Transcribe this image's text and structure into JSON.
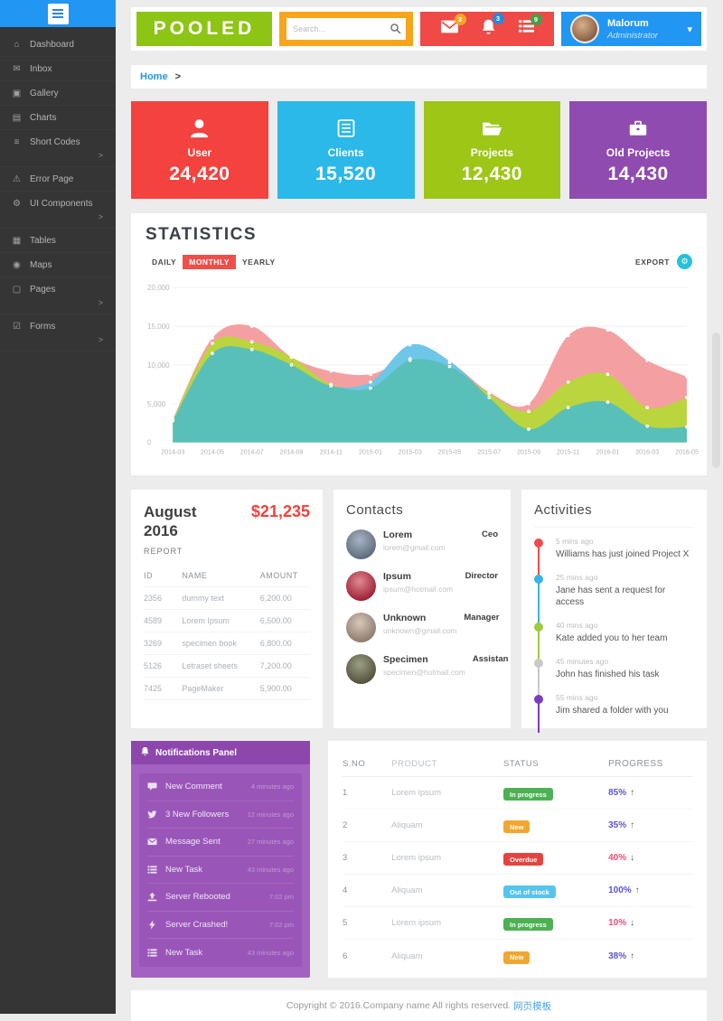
{
  "topbar": {
    "logo": "POOLED",
    "search_placeholder": "Search...",
    "alerts": {
      "mail_count": "3",
      "bell_count": "3",
      "tasks_count": "9"
    },
    "alert_badge_colors": {
      "mail": "#f5a623",
      "bell": "#2b87d8",
      "tasks": "#43a047"
    },
    "user": {
      "name": "Malorum",
      "role": "Administrator",
      "caret": "▾"
    }
  },
  "sidebar": {
    "items": [
      {
        "icon": "dashboard-icon",
        "glyph": "⌂",
        "label": "Dashboard"
      },
      {
        "icon": "inbox-icon",
        "glyph": "✉",
        "label": "Inbox"
      },
      {
        "icon": "gallery-icon",
        "glyph": "▣",
        "label": "Gallery"
      },
      {
        "icon": "charts-icon",
        "glyph": "▤",
        "label": "Charts"
      },
      {
        "icon": "shortcodes-icon",
        "glyph": "≡",
        "label": "Short Codes",
        "chevron": ">"
      },
      {
        "icon": "error-page-icon",
        "glyph": "⚠",
        "label": "Error Page"
      },
      {
        "icon": "ui-components-icon",
        "glyph": "⚙",
        "label": "UI Components",
        "chevron": ">"
      },
      {
        "icon": "tables-icon",
        "glyph": "▦",
        "label": "Tables"
      },
      {
        "icon": "maps-icon",
        "glyph": "◉",
        "label": "Maps"
      },
      {
        "icon": "pages-icon",
        "glyph": "▢",
        "label": "Pages",
        "chevron": ">"
      },
      {
        "icon": "forms-icon",
        "glyph": "☑",
        "label": "Forms",
        "chevron": ">"
      }
    ]
  },
  "breadcrumb": {
    "home": "Home",
    "separator": ">"
  },
  "cards": [
    {
      "icon": "user-icon",
      "label": "User",
      "value": "24,420",
      "color": "#f4423e"
    },
    {
      "icon": "clients-icon",
      "label": "Clients",
      "value": "15,520",
      "color": "#2ab9e8"
    },
    {
      "icon": "projects-icon",
      "label": "Projects",
      "value": "12,430",
      "color": "#9dc616"
    },
    {
      "icon": "old-projects-icon",
      "label": "Old Projects",
      "value": "14,430",
      "color": "#8f4baf"
    }
  ],
  "statistics": {
    "title": "STATISTICS",
    "tabs": [
      "DAILY",
      "MONTHLY",
      "YEARLY"
    ],
    "active_tab": "MONTHLY",
    "export_label": "EXPORT",
    "gear_glyph": "⚙",
    "chart_data": {
      "type": "area",
      "x": [
        "2014-03",
        "2014-05",
        "2014-07",
        "2014-09",
        "2014-11",
        "2015-01",
        "2015-03",
        "2015-05",
        "2015-07",
        "2015-09",
        "2015-11",
        "2016-01",
        "2016-03",
        "2016-05"
      ],
      "series": [
        {
          "name": "series-pink",
          "color": "#f5a0a0",
          "values": [
            3000,
            13500,
            15000,
            11000,
            9200,
            8800,
            10800,
            10300,
            6500,
            5000,
            13800,
            14500,
            10600,
            8500
          ]
        },
        {
          "name": "series-green",
          "color": "#bad53e",
          "values": [
            2900,
            12800,
            13000,
            11000,
            7500,
            7000,
            10600,
            9800,
            6300,
            4000,
            7800,
            8800,
            4500,
            5800
          ]
        },
        {
          "name": "series-blue",
          "color": "#6ec6e9",
          "overlap_color": "#58c0b8",
          "values": [
            2800,
            11500,
            12000,
            10000,
            7300,
            7800,
            12600,
            10500,
            5800,
            1700,
            4500,
            5200,
            2100,
            2000
          ]
        }
      ],
      "ylim": [
        0,
        20000
      ],
      "yticks": {
        "values": [
          0,
          5000,
          10000,
          15000,
          20000
        ],
        "labels": [
          "0",
          "5,000",
          "10,000",
          "15,000",
          "20,000"
        ]
      },
      "grid": true,
      "legend": "none"
    }
  },
  "report": {
    "month_line1": "August",
    "month_line2": "2016",
    "total": "$21,235",
    "label": "REPORT",
    "columns": [
      "ID",
      "NAME",
      "AMOUNT"
    ],
    "rows": [
      {
        "id": "2356",
        "name": "dummy text",
        "amount": "6,200.00"
      },
      {
        "id": "4589",
        "name": "Lorem Ipsum",
        "amount": "6,500.00"
      },
      {
        "id": "3269",
        "name": "specimen book",
        "amount": "6,800.00"
      },
      {
        "id": "5126",
        "name": "Letraset sheets",
        "amount": "7,200.00"
      },
      {
        "id": "7425",
        "name": "PageMaker",
        "amount": "5,900.00"
      }
    ]
  },
  "contacts": {
    "title": "Contacts",
    "items": [
      {
        "name": "Lorem",
        "email": "lorem@gmail.com",
        "role": "Ceo",
        "avatar": "radial-gradient(circle at 45% 35%, #a9b4c2, #5c6b7d 75%)"
      },
      {
        "name": "Ipsum",
        "email": "ipsum@hotmail.com",
        "role": "Director",
        "avatar": "radial-gradient(circle at 45% 35%, #e08a93, #9e1f33 75%)"
      },
      {
        "name": "Unknown",
        "email": "unknown@gmail.com",
        "role": "Manager",
        "avatar": "radial-gradient(circle at 45% 35%, #d8c8ba, #8d7b6e 75%)"
      },
      {
        "name": "Specimen",
        "email": "specimen@hotmail.com",
        "role": "Assistan",
        "avatar": "radial-gradient(circle at 45% 35%, #9aa083, #55503e 75%)"
      }
    ]
  },
  "activities": {
    "title": "Activities",
    "items": [
      {
        "time": "5 mins ago",
        "text": "Williams has just joined Project X",
        "color": "#ef4b4b"
      },
      {
        "time": "25 mins ago",
        "text": "Jane has sent a request for access",
        "color": "#36b4e5"
      },
      {
        "time": "40 mins ago",
        "text": "Kate added you to her team",
        "color": "#9ccb3b"
      },
      {
        "time": "45 minutes ago",
        "text": "John has finished his task",
        "color": "#c9c9c9"
      },
      {
        "time": "55 mins ago",
        "text": "Jim shared a folder with you",
        "color": "#7d3bbf"
      }
    ]
  },
  "notifications": {
    "title": "Notifications Panel",
    "items": [
      {
        "icon": "comment-icon",
        "label": "New Comment",
        "time": "4 minutes ago"
      },
      {
        "icon": "twitter-icon",
        "label": "3 New Followers",
        "time": "12 minutes ago"
      },
      {
        "icon": "mail-icon",
        "label": "Message Sent",
        "time": "27 minutes ago"
      },
      {
        "icon": "tasks-icon",
        "label": "New Task",
        "time": "43 minutes ago"
      },
      {
        "icon": "upload-icon",
        "label": "Server Rebooted",
        "time": "7:02 pm"
      },
      {
        "icon": "bolt-icon",
        "label": "Server Crashed!",
        "time": "7:02 pm"
      },
      {
        "icon": "tasks-icon",
        "label": "New Task",
        "time": "43 minutes ago"
      }
    ]
  },
  "products": {
    "columns": [
      "S.NO",
      "PRODUCT",
      "STATUS",
      "PROGRESS"
    ],
    "rows": [
      {
        "sno": "1",
        "product": "Lorem ipsum",
        "status": "In progress",
        "status_color": "#4db153",
        "progress": "85%",
        "arrow": "↑",
        "progress_color": "#5a55d2"
      },
      {
        "sno": "2",
        "product": "Aliquam",
        "status": "New",
        "status_color": "#f0a731",
        "progress": "35%",
        "arrow": "↑",
        "progress_color": "#5a55d2"
      },
      {
        "sno": "3",
        "product": "Lorem ipsum",
        "status": "Overdue",
        "status_color": "#e5433f",
        "progress": "40%",
        "arrow": "↓",
        "progress_color": "#ee4b77"
      },
      {
        "sno": "4",
        "product": "Aliquam",
        "status": "Out of stock",
        "status_color": "#55c4ef",
        "progress": "100%",
        "arrow": "↑",
        "progress_color": "#5a55d2"
      },
      {
        "sno": "5",
        "product": "Lorem ipsum",
        "status": "In progress",
        "status_color": "#4db153",
        "progress": "10%",
        "arrow": "↓",
        "progress_color": "#ee4b77"
      },
      {
        "sno": "6",
        "product": "Aliquam",
        "status": "New",
        "status_color": "#f0a731",
        "progress": "38%",
        "arrow": "↑",
        "progress_color": "#5a55d2"
      }
    ]
  },
  "footer": {
    "text": "Copyright © 2016.Company name All rights reserved.",
    "link": "网页模板"
  }
}
